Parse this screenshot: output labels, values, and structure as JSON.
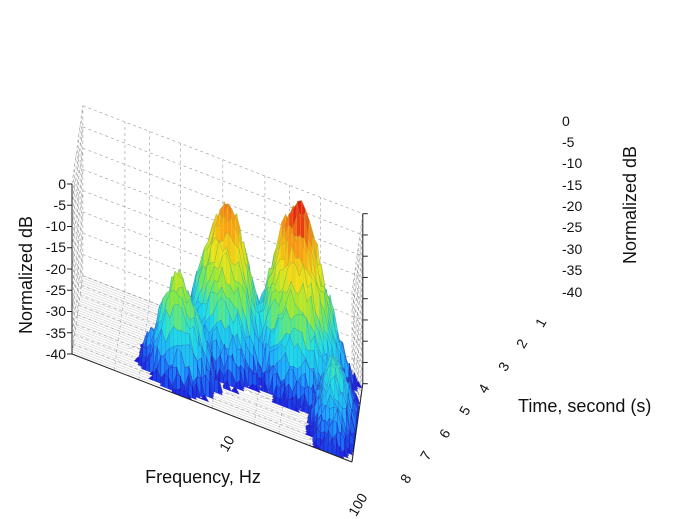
{
  "chart_data": {
    "type": "surface3d",
    "left_z_axis": {
      "label": "Normalized dB",
      "ticks": [
        "0",
        "-5",
        "-10",
        "-15",
        "-20",
        "-25",
        "-30",
        "-35",
        "-40"
      ],
      "range": [
        -40,
        0
      ]
    },
    "right_z_axis": {
      "label": "Normalized dB",
      "ticks": [
        "0",
        "-5",
        "-10",
        "-15",
        "-20",
        "-25",
        "-30",
        "-35",
        "-40"
      ],
      "range": [
        -40,
        0
      ]
    },
    "x_axis": {
      "label": "Frequency, Hz",
      "scale": "log",
      "ticks": [
        "10",
        "100"
      ],
      "range": [
        1,
        100
      ]
    },
    "y_axis": {
      "label": "Time, second (s)",
      "ticks": [
        "1",
        "2",
        "3",
        "4",
        "5",
        "6",
        "7",
        "8"
      ],
      "range": [
        0,
        8
      ]
    },
    "z_range": [
      -40,
      0
    ],
    "colormap": [
      "#1a10d8",
      "#1fa0ff",
      "#22e0e0",
      "#8fe83a",
      "#f4e21a",
      "#f89a18",
      "#e01515"
    ],
    "grid": true,
    "description_peaks": [
      {
        "freq": 40,
        "time": 1.0,
        "db": 0
      },
      {
        "freq": 12,
        "time": 2.0,
        "db": -3
      },
      {
        "freq": 6,
        "time": 6.0,
        "db": -16
      }
    ]
  }
}
